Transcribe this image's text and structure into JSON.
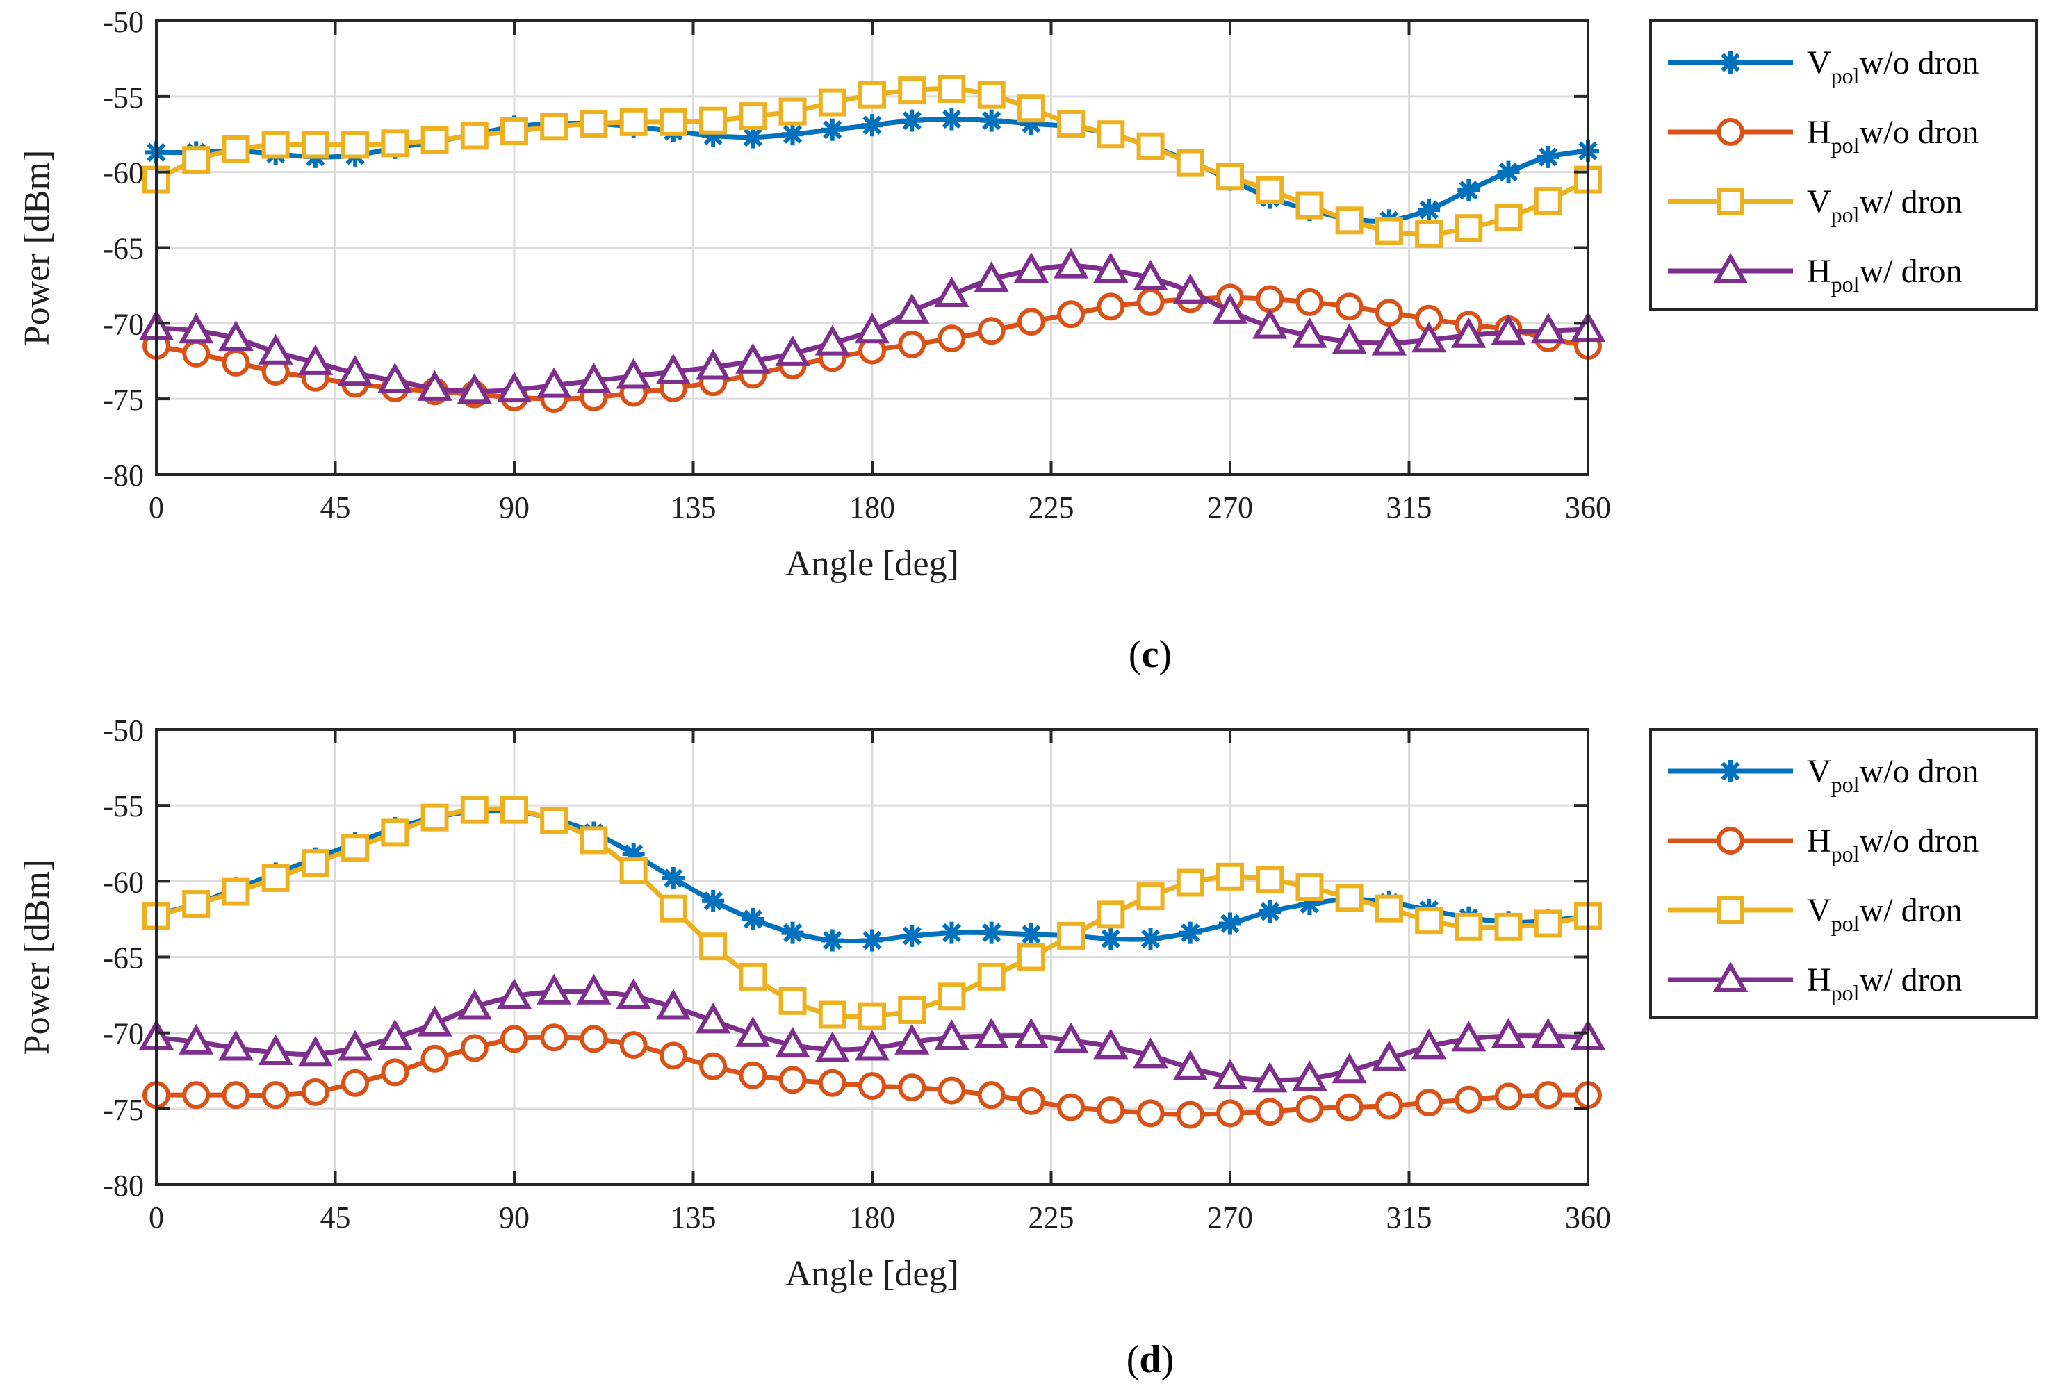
{
  "colors": {
    "v_without": "#0072BD",
    "h_without": "#D95319",
    "v_with": "#EDB120",
    "h_with": "#7E2F8E"
  },
  "chart_data": [
    {
      "type": "line",
      "panel_label": "(c)",
      "panel_letter": "c",
      "xlabel": "Angle [deg]",
      "ylabel": "Power [dBm]",
      "xlim": [
        0,
        360
      ],
      "ylim": [
        -80,
        -50
      ],
      "xticks": [
        0,
        45,
        90,
        135,
        180,
        225,
        270,
        315,
        360
      ],
      "yticks": [
        -50,
        -55,
        -60,
        -65,
        -70,
        -75,
        -80
      ],
      "grid": true,
      "legend_position": "outside-right",
      "x": [
        0,
        10,
        20,
        30,
        40,
        50,
        60,
        70,
        80,
        90,
        100,
        110,
        120,
        130,
        140,
        150,
        160,
        170,
        180,
        190,
        200,
        210,
        220,
        230,
        240,
        250,
        260,
        270,
        280,
        290,
        300,
        310,
        320,
        330,
        340,
        350,
        360
      ],
      "series": [
        {
          "name": "V_pol w/o dron",
          "label_main": "V",
          "label_sub": "pol",
          "label_rest": "w/o dron",
          "marker": "asterisk",
          "color_key": "v_without",
          "values": [
            -58.7,
            -58.7,
            -58.6,
            -58.8,
            -59,
            -58.9,
            -58.4,
            -58,
            -57.5,
            -57,
            -56.8,
            -56.8,
            -57,
            -57.3,
            -57.6,
            -57.7,
            -57.5,
            -57.2,
            -56.9,
            -56.6,
            -56.5,
            -56.6,
            -56.8,
            -57,
            -57.5,
            -58.3,
            -59.3,
            -60.5,
            -61.7,
            -62.5,
            -63.1,
            -63.2,
            -62.5,
            -61.2,
            -60,
            -59,
            -58.6
          ]
        },
        {
          "name": "H_pol w/o dron",
          "label_main": "H",
          "label_sub": "pol",
          "label_rest": "w/o dron",
          "marker": "circle",
          "color_key": "h_without",
          "values": [
            -71.5,
            -72,
            -72.6,
            -73.2,
            -73.6,
            -74,
            -74.3,
            -74.5,
            -74.7,
            -74.9,
            -75,
            -74.9,
            -74.6,
            -74.3,
            -73.9,
            -73.4,
            -72.8,
            -72.3,
            -71.8,
            -71.4,
            -71,
            -70.5,
            -69.9,
            -69.4,
            -68.9,
            -68.6,
            -68.4,
            -68.3,
            -68.4,
            -68.6,
            -68.9,
            -69.3,
            -69.7,
            -70.1,
            -70.4,
            -71,
            -71.5
          ]
        },
        {
          "name": "V_pol w/ dron",
          "label_main": "V",
          "label_sub": "pol",
          "label_rest": "w/ dron",
          "marker": "square",
          "color_key": "v_with",
          "values": [
            -60.5,
            -59.2,
            -58.5,
            -58.2,
            -58.2,
            -58.2,
            -58.1,
            -57.9,
            -57.6,
            -57.3,
            -57,
            -56.8,
            -56.7,
            -56.7,
            -56.6,
            -56.3,
            -56,
            -55.4,
            -54.9,
            -54.6,
            -54.5,
            -54.9,
            -55.8,
            -56.8,
            -57.5,
            -58.3,
            -59.4,
            -60.3,
            -61.2,
            -62.2,
            -63.2,
            -63.9,
            -64.1,
            -63.7,
            -63,
            -61.9,
            -60.5
          ]
        },
        {
          "name": "H_pol w/ dron",
          "label_main": "H",
          "label_sub": "pol",
          "label_rest": "w/ dron",
          "marker": "triangle",
          "color_key": "h_with",
          "values": [
            -70.3,
            -70.5,
            -71,
            -71.9,
            -72.6,
            -73.3,
            -73.8,
            -74.3,
            -74.5,
            -74.4,
            -74.1,
            -73.8,
            -73.5,
            -73.2,
            -72.9,
            -72.5,
            -72,
            -71.3,
            -70.5,
            -69.2,
            -68.1,
            -67.1,
            -66.5,
            -66.2,
            -66.5,
            -67,
            -67.9,
            -69.2,
            -70.2,
            -70.8,
            -71.2,
            -71.3,
            -71.1,
            -70.8,
            -70.6,
            -70.5,
            -70.4
          ]
        }
      ]
    },
    {
      "type": "line",
      "panel_label": "(d)",
      "panel_letter": "d",
      "xlabel": "Angle [deg]",
      "ylabel": "Power [dBm]",
      "xlim": [
        0,
        360
      ],
      "ylim": [
        -80,
        -50
      ],
      "xticks": [
        0,
        45,
        90,
        135,
        180,
        225,
        270,
        315,
        360
      ],
      "yticks": [
        -50,
        -55,
        -60,
        -65,
        -70,
        -75,
        -80
      ],
      "grid": true,
      "legend_position": "outside-right",
      "x": [
        0,
        10,
        20,
        30,
        40,
        50,
        60,
        70,
        80,
        90,
        100,
        110,
        120,
        130,
        140,
        150,
        160,
        170,
        180,
        190,
        200,
        210,
        220,
        230,
        240,
        250,
        260,
        270,
        280,
        290,
        300,
        310,
        320,
        330,
        340,
        350,
        360
      ],
      "series": [
        {
          "name": "V_pol w/o dron",
          "label_main": "V",
          "label_sub": "pol",
          "label_rest": "w/o dron",
          "marker": "asterisk",
          "color_key": "v_without",
          "values": [
            -62.2,
            -61.5,
            -60.5,
            -59.5,
            -58.5,
            -57.5,
            -56.5,
            -55.8,
            -55.4,
            -55.4,
            -55.9,
            -56.8,
            -58.2,
            -59.8,
            -61.3,
            -62.5,
            -63.4,
            -63.9,
            -63.9,
            -63.6,
            -63.4,
            -63.4,
            -63.5,
            -63.6,
            -63.8,
            -63.8,
            -63.4,
            -62.8,
            -62,
            -61.5,
            -61.2,
            -61.4,
            -61.9,
            -62.4,
            -62.7,
            -62.6,
            -62.3
          ]
        },
        {
          "name": "H_pol w/o dron",
          "label_main": "H",
          "label_sub": "pol",
          "label_rest": "w/o dron",
          "marker": "circle",
          "color_key": "h_without",
          "values": [
            -74.1,
            -74.1,
            -74.1,
            -74.1,
            -73.9,
            -73.3,
            -72.6,
            -71.7,
            -71,
            -70.4,
            -70.3,
            -70.4,
            -70.8,
            -71.5,
            -72.2,
            -72.8,
            -73.1,
            -73.3,
            -73.5,
            -73.6,
            -73.8,
            -74.1,
            -74.5,
            -74.9,
            -75.1,
            -75.3,
            -75.4,
            -75.3,
            -75.2,
            -75,
            -74.9,
            -74.8,
            -74.6,
            -74.4,
            -74.2,
            -74.1,
            -74.1
          ]
        },
        {
          "name": "V_pol w/ dron",
          "label_main": "V",
          "label_sub": "pol",
          "label_rest": "w/ dron",
          "marker": "square",
          "color_key": "v_with",
          "values": [
            -62.3,
            -61.5,
            -60.7,
            -59.8,
            -58.8,
            -57.8,
            -56.8,
            -55.8,
            -55.3,
            -55.3,
            -56,
            -57.3,
            -59.3,
            -61.8,
            -64.3,
            -66.3,
            -67.9,
            -68.8,
            -68.9,
            -68.5,
            -67.6,
            -66.3,
            -65,
            -63.6,
            -62.2,
            -61,
            -60.1,
            -59.7,
            -59.9,
            -60.4,
            -61.1,
            -61.8,
            -62.6,
            -63,
            -63,
            -62.8,
            -62.3
          ]
        },
        {
          "name": "H_pol w/ dron",
          "label_main": "H",
          "label_sub": "pol",
          "label_rest": "w/ dron",
          "marker": "triangle",
          "color_key": "h_with",
          "values": [
            -70.3,
            -70.6,
            -71,
            -71.3,
            -71.4,
            -71,
            -70.3,
            -69.4,
            -68.3,
            -67.6,
            -67.3,
            -67.3,
            -67.6,
            -68.3,
            -69.2,
            -70.1,
            -70.8,
            -71.1,
            -71,
            -70.6,
            -70.3,
            -70.2,
            -70.2,
            -70.5,
            -70.9,
            -71.5,
            -72.3,
            -72.9,
            -73.1,
            -73,
            -72.5,
            -71.7,
            -70.9,
            -70.4,
            -70.2,
            -70.2,
            -70.3
          ]
        }
      ]
    }
  ]
}
